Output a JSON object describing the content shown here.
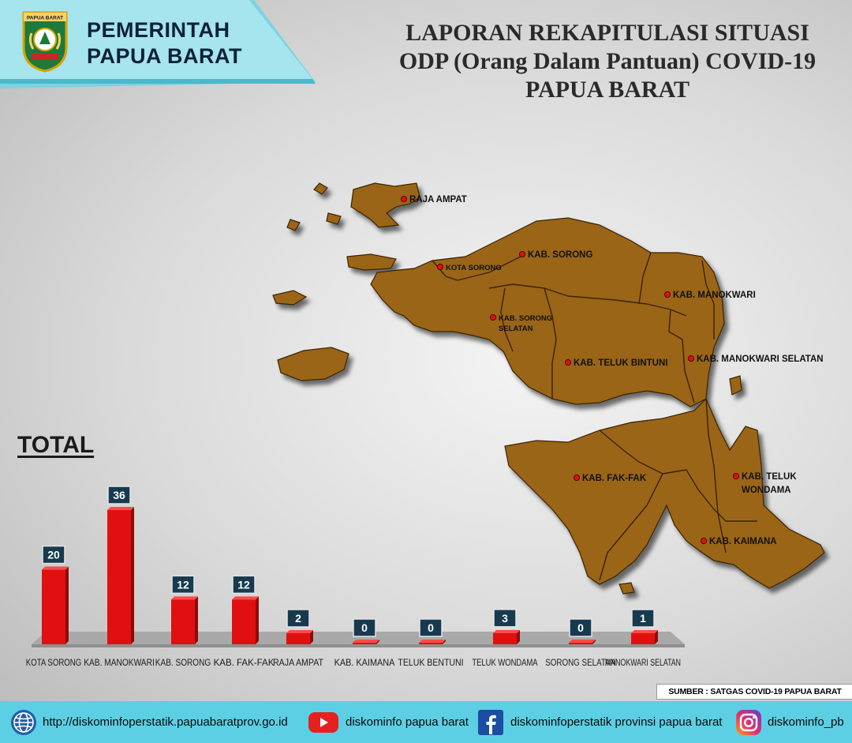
{
  "header": {
    "gov_line1": "PEMERINTAH",
    "gov_line2": "PAPUA BARAT",
    "logo_text": "PAPUA BARAT",
    "title_lines": [
      "LAPORAN REKAPITULASI SITUASI",
      "ODP (Orang Dalam Pantuan) COVID-19",
      "PAPUA BARAT"
    ]
  },
  "map": {
    "fill_color": "#9a6514",
    "labels": [
      "RAJA AMPAT",
      "KOTA SORONG",
      "KAB. SORONG",
      "KAB. SORONG",
      "SELATAN",
      "KAB. MANOKWARI",
      "KAB. TELUK BINTUNI",
      "KAB. MANOKWARI SELATAN",
      "KAB. FAK-FAK",
      "KAB. TELUK",
      "WONDAMA",
      "KAB. KAIMANA"
    ]
  },
  "total_label": "TOTAL",
  "chart_data": {
    "type": "bar",
    "categories": [
      "KOTA SORONG",
      "KAB. MANOKWARI",
      "KAB. SORONG",
      "KAB. FAK-FAK",
      "RAJA AMPAT",
      "KAB. KAIMANA",
      "TELUK BENTUNI",
      "TELUK WONDAMA",
      "SORONG SELATAN",
      "MANOKWARI SELATAN"
    ],
    "values": [
      20,
      36,
      12,
      12,
      2,
      0,
      0,
      3,
      0,
      1
    ],
    "bar_color": "#e01010",
    "label_bg": "#173a4e",
    "title": "TOTAL"
  },
  "source": "SUMBER : SATGAS COVID-19 PAPUA BARAT",
  "footer": {
    "website": "http://diskominfoperstatik.papuabaratprov.go.id",
    "youtube": "diskominfo papua barat",
    "facebook": "diskominfoperstatik provinsi papua barat",
    "instagram": "diskominfo_pb",
    "bg_color": "#5ccfe4"
  }
}
